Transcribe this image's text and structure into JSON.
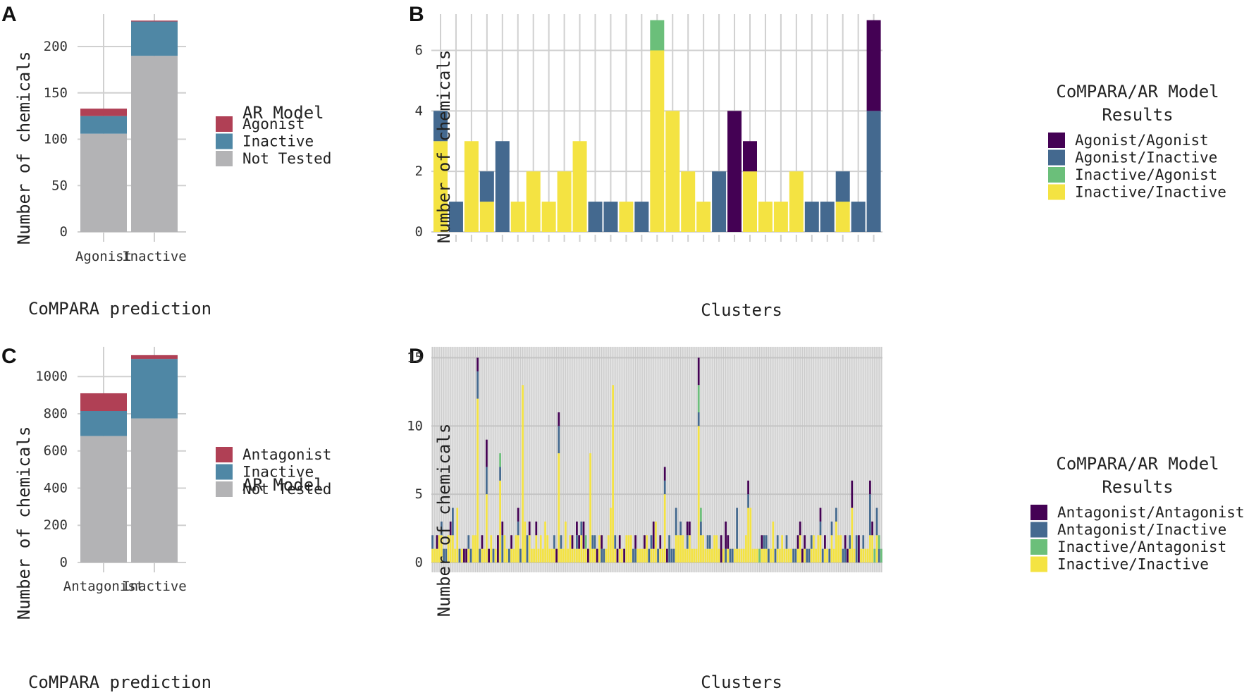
{
  "colors": {
    "grid": "#d0d0d0",
    "not_tested": "#b3b3b5",
    "inactive_ab": "#4f87a5",
    "active_ab": "#b04055",
    "viridis_agonist_agonist": "#440154",
    "viridis_agonist_inactive": "#44698f",
    "viridis_inactive_agonist": "#6bbf7a",
    "viridis_inactive_inactive": "#f4e342"
  },
  "chart_data": [
    {
      "panel": "A",
      "type": "bar",
      "stacked": true,
      "xlabel": "CoMPARA prediction",
      "ylabel": "Number of chemicals",
      "categories": [
        "Agonist",
        "Inactive"
      ],
      "ylim": [
        0,
        235
      ],
      "yticks": [
        0,
        50,
        100,
        150,
        200
      ],
      "legend_title": "AR Model",
      "series": [
        {
          "name": "Not Tested",
          "color_key": "not_tested",
          "values": [
            106,
            190
          ]
        },
        {
          "name": "Inactive",
          "color_key": "inactive_ab",
          "values": [
            19,
            37
          ]
        },
        {
          "name": "Agonist",
          "color_key": "active_ab",
          "values": [
            8,
            1
          ]
        }
      ],
      "legend": [
        "Agonist",
        "Inactive",
        "Not Tested"
      ]
    },
    {
      "panel": "B",
      "type": "bar",
      "stacked": true,
      "xlabel": "Clusters",
      "ylabel": "Number of chemicals",
      "ylim": [
        0,
        7.2
      ],
      "yticks": [
        0,
        2,
        4,
        6
      ],
      "legend_title_lines": [
        "CoMPARA/AR Model",
        "Results"
      ],
      "legend": [
        "Agonist/Agonist",
        "Agonist/Inactive",
        "Inactive/Agonist",
        "Inactive/Inactive"
      ],
      "clusters": [
        {
          "ii": 3,
          "ai": 1,
          "ia": 0,
          "aa": 0
        },
        {
          "ii": 0,
          "ai": 1,
          "ia": 0,
          "aa": 0
        },
        {
          "ii": 3,
          "ai": 0,
          "ia": 0,
          "aa": 0
        },
        {
          "ii": 1,
          "ai": 1,
          "ia": 0,
          "aa": 0
        },
        {
          "ii": 0,
          "ai": 3,
          "ia": 0,
          "aa": 0
        },
        {
          "ii": 1,
          "ai": 0,
          "ia": 0,
          "aa": 0
        },
        {
          "ii": 2,
          "ai": 0,
          "ia": 0,
          "aa": 0
        },
        {
          "ii": 1,
          "ai": 0,
          "ia": 0,
          "aa": 0
        },
        {
          "ii": 2,
          "ai": 0,
          "ia": 0,
          "aa": 0
        },
        {
          "ii": 3,
          "ai": 0,
          "ia": 0,
          "aa": 0
        },
        {
          "ii": 0,
          "ai": 1,
          "ia": 0,
          "aa": 0
        },
        {
          "ii": 0,
          "ai": 1,
          "ia": 0,
          "aa": 0
        },
        {
          "ii": 1,
          "ai": 0,
          "ia": 0,
          "aa": 0
        },
        {
          "ii": 0,
          "ai": 1,
          "ia": 0,
          "aa": 0
        },
        {
          "ii": 6,
          "ai": 0,
          "ia": 1,
          "aa": 0
        },
        {
          "ii": 4,
          "ai": 0,
          "ia": 0,
          "aa": 0
        },
        {
          "ii": 2,
          "ai": 0,
          "ia": 0,
          "aa": 0
        },
        {
          "ii": 1,
          "ai": 0,
          "ia": 0,
          "aa": 0
        },
        {
          "ii": 0,
          "ai": 2,
          "ia": 0,
          "aa": 0
        },
        {
          "ii": 0,
          "ai": 0,
          "ia": 0,
          "aa": 4
        },
        {
          "ii": 2,
          "ai": 0,
          "ia": 0,
          "aa": 1
        },
        {
          "ii": 1,
          "ai": 0,
          "ia": 0,
          "aa": 0
        },
        {
          "ii": 1,
          "ai": 0,
          "ia": 0,
          "aa": 0
        },
        {
          "ii": 2,
          "ai": 0,
          "ia": 0,
          "aa": 0
        },
        {
          "ii": 0,
          "ai": 1,
          "ia": 0,
          "aa": 0
        },
        {
          "ii": 0,
          "ai": 1,
          "ia": 0,
          "aa": 0
        },
        {
          "ii": 1,
          "ai": 1,
          "ia": 0,
          "aa": 0
        },
        {
          "ii": 0,
          "ai": 1,
          "ia": 0,
          "aa": 0
        },
        {
          "ii": 0,
          "ai": 4,
          "ia": 0,
          "aa": 3
        }
      ]
    },
    {
      "panel": "C",
      "type": "bar",
      "stacked": true,
      "xlabel": "CoMPARA prediction",
      "ylabel": "Number of chemicals",
      "categories": [
        "Antagonist",
        "Inactive"
      ],
      "ylim": [
        0,
        1160
      ],
      "yticks": [
        0,
        200,
        400,
        600,
        800,
        1000
      ],
      "legend_title": "AR Model",
      "series": [
        {
          "name": "Not Tested",
          "color_key": "not_tested",
          "values": [
            680,
            775
          ]
        },
        {
          "name": "Inactive",
          "color_key": "inactive_ab",
          "values": [
            135,
            320
          ]
        },
        {
          "name": "Antagonist",
          "color_key": "active_ab",
          "values": [
            95,
            20
          ]
        }
      ],
      "legend": [
        "Antagonist",
        "Inactive",
        "Not Tested"
      ]
    },
    {
      "panel": "D",
      "type": "bar",
      "stacked": true,
      "xlabel": "Clusters",
      "ylabel": "Number of chemicals",
      "ylim": [
        0,
        15.8
      ],
      "yticks": [
        0,
        5,
        10,
        15
      ],
      "legend_title_lines": [
        "CoMPARA/AR Model",
        "Results"
      ],
      "legend": [
        "Antagonist/Antagonist",
        "Antagonist/Inactive",
        "Inactive/Antagonist",
        "Inactive/Inactive"
      ],
      "n_clusters": 200,
      "peaks": [
        {
          "i": 20,
          "ii": 12,
          "ai": 2,
          "ia": 0,
          "aa": 1
        },
        {
          "i": 24,
          "ii": 5,
          "ai": 2,
          "ia": 0,
          "aa": 2
        },
        {
          "i": 30,
          "ii": 6,
          "ai": 1,
          "ia": 1,
          "aa": 0
        },
        {
          "i": 40,
          "ii": 13,
          "ai": 0,
          "ia": 0,
          "aa": 0
        },
        {
          "i": 56,
          "ii": 8,
          "ai": 2,
          "ia": 0,
          "aa": 1
        },
        {
          "i": 70,
          "ii": 8,
          "ai": 0,
          "ia": 0,
          "aa": 0
        },
        {
          "i": 80,
          "ii": 13,
          "ai": 0,
          "ia": 0,
          "aa": 0
        },
        {
          "i": 103,
          "ii": 5,
          "ai": 1,
          "ia": 0,
          "aa": 1
        },
        {
          "i": 118,
          "ii": 10,
          "ai": 1,
          "ia": 2,
          "aa": 2
        },
        {
          "i": 140,
          "ii": 4,
          "ai": 1,
          "ia": 0,
          "aa": 1
        },
        {
          "i": 186,
          "ii": 4,
          "ai": 0,
          "ia": 0,
          "aa": 2
        },
        {
          "i": 194,
          "ii": 2,
          "ai": 3,
          "ia": 0,
          "aa": 1
        }
      ]
    }
  ]
}
